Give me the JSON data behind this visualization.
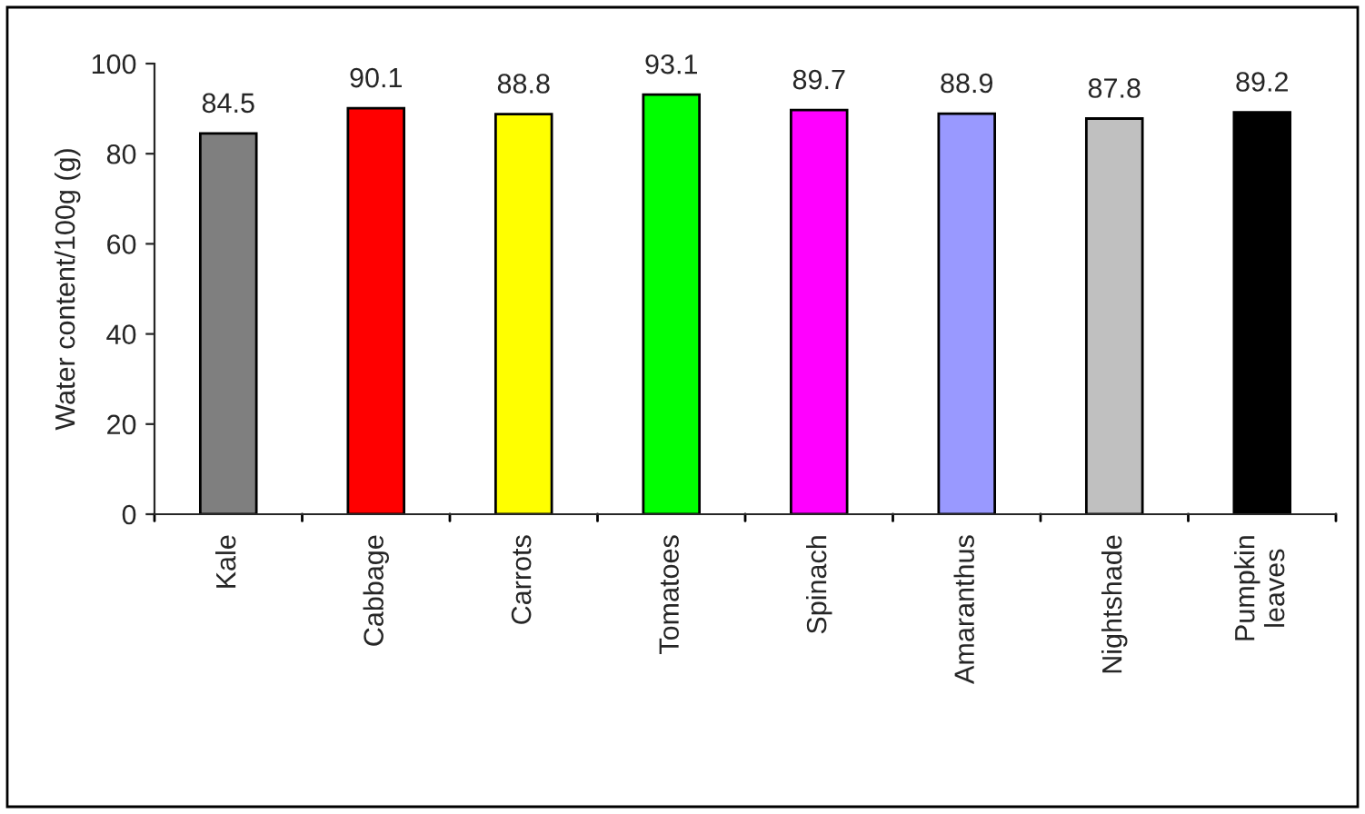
{
  "chart_data": {
    "type": "bar",
    "ylabel": "Water content/100g (g)",
    "categories": [
      "Kale",
      "Cabbage",
      "Carrots",
      "Tomatoes",
      "Spinach",
      "Amaranthus",
      "Nightshade",
      "Pumpkin\nleaves"
    ],
    "values": [
      84.5,
      90.1,
      88.8,
      93.1,
      89.7,
      88.9,
      87.8,
      89.2
    ],
    "colors": [
      "#7f7f7f",
      "#ff0000",
      "#ffff00",
      "#00ff00",
      "#ff00ff",
      "#9999ff",
      "#c0c0c0",
      "#000000"
    ],
    "ylim": [
      0,
      100
    ],
    "yticks": [
      0,
      20,
      40,
      60,
      80,
      100
    ],
    "grid": false,
    "data_labels": true
  }
}
